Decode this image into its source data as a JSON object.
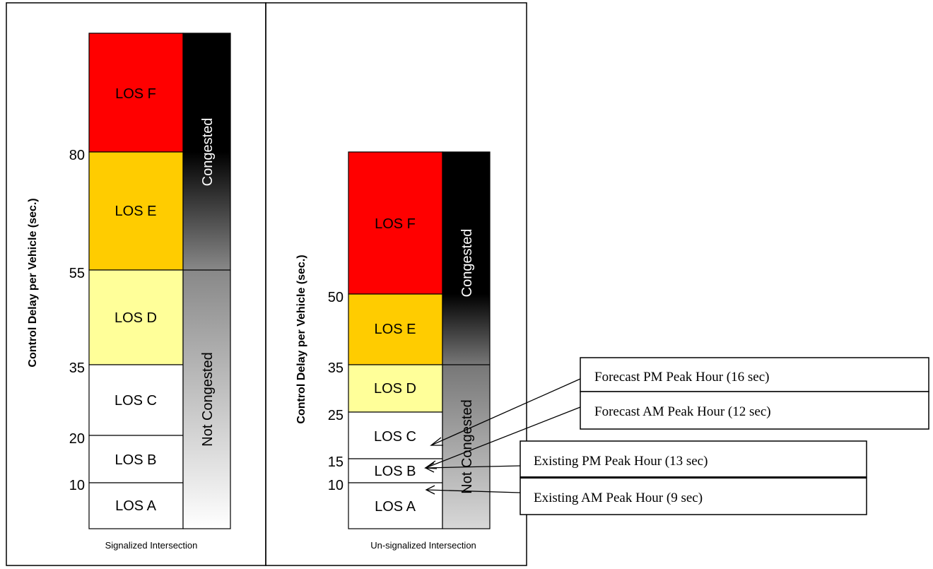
{
  "signalized": {
    "caption": "Signalized Intersection",
    "y_axis_label": "Control Delay per Vehicle (sec.)",
    "levels": [
      {
        "label": "LOS A",
        "color": "#ffffff"
      },
      {
        "label": "LOS B",
        "color": "#ffffff"
      },
      {
        "label": "LOS C",
        "color": "#ffffff"
      },
      {
        "label": "LOS D",
        "color": "#ffff99"
      },
      {
        "label": "LOS E",
        "color": "#ffcc00"
      },
      {
        "label": "LOS F",
        "color": "#ff0000"
      }
    ],
    "thresholds": [
      "10",
      "20",
      "35",
      "55",
      "80"
    ],
    "congestion": {
      "congested": "Congested",
      "not_congested": "Not Congested"
    }
  },
  "unsignalized": {
    "caption": "Un-signalized Intersection",
    "y_axis_label": "Control Delay per Vehicle (sec.)",
    "levels": [
      {
        "label": "LOS A",
        "color": "#ffffff"
      },
      {
        "label": "LOS B",
        "color": "#ffffff"
      },
      {
        "label": "LOS C",
        "color": "#ffffff"
      },
      {
        "label": "LOS D",
        "color": "#ffff99"
      },
      {
        "label": "LOS E",
        "color": "#ffcc00"
      },
      {
        "label": "LOS F",
        "color": "#ff0000"
      }
    ],
    "thresholds": [
      "10",
      "15",
      "25",
      "35",
      "50"
    ],
    "congestion": {
      "congested": "Congested",
      "not_congested": "Not Congested"
    }
  },
  "callouts": [
    {
      "text": "Forecast PM Peak Hour (16 sec)",
      "value_sec": 16
    },
    {
      "text": "Forecast AM Peak Hour (12 sec)",
      "value_sec": 12
    },
    {
      "text": "Existing PM Peak Hour (13 sec)",
      "value_sec": 13
    },
    {
      "text": "Existing AM Peak Hour (9 sec)",
      "value_sec": 9
    }
  ]
}
